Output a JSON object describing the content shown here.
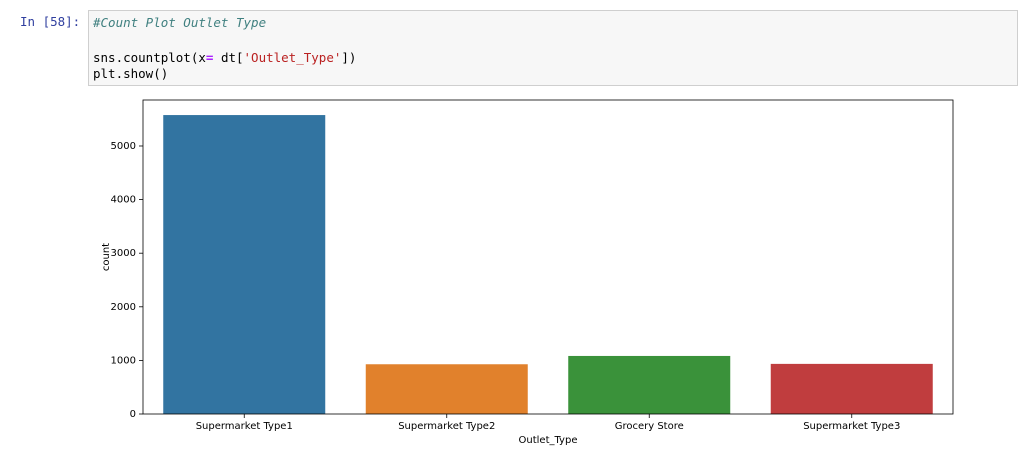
{
  "cell": {
    "prompt": "In [58]:",
    "comment": "#Count Plot Outlet Type",
    "line2": [
      "sns.countplot(x",
      "=",
      " dt[",
      "'Outlet_Type'",
      "])"
    ],
    "line3": "plt.show()"
  },
  "chart_data": {
    "type": "bar",
    "categories": [
      "Supermarket Type1",
      "Supermarket Type2",
      "Grocery Store",
      "Supermarket Type3"
    ],
    "values": [
      5577,
      928,
      1083,
      935
    ],
    "colors": [
      "#3274a1",
      "#e1812c",
      "#3a923a",
      "#c03d3e"
    ],
    "xlabel": "Outlet_Type",
    "ylabel": "count",
    "ylim": [
      0,
      5858
    ],
    "yticks": [
      0,
      1000,
      2000,
      3000,
      4000,
      5000
    ],
    "grid": false
  }
}
